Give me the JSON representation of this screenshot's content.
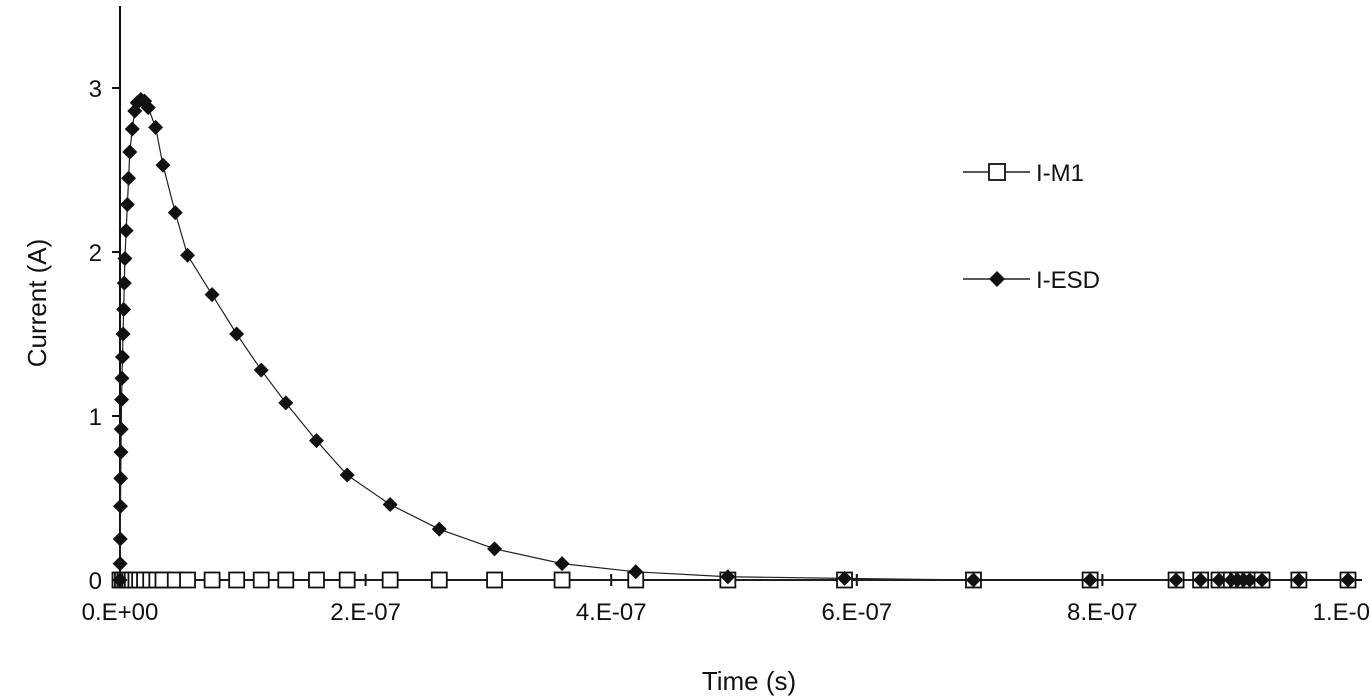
{
  "chart_data": {
    "type": "scatter",
    "title": "",
    "xlabel": "Time (s)",
    "ylabel": "Current (A)",
    "xlim": [
      0,
      1e-06
    ],
    "ylim": [
      0,
      3.5
    ],
    "x_ticks": [
      0,
      2e-07,
      4e-07,
      6e-07,
      8e-07,
      1e-06
    ],
    "x_tick_labels": [
      "0.E+00",
      "2.E-07",
      "4.E-07",
      "6.E-07",
      "8.E-07",
      "1.E-06"
    ],
    "y_ticks": [
      0,
      1,
      2,
      3
    ],
    "y_tick_labels": [
      "0",
      "1",
      "2",
      "3"
    ],
    "grid": false,
    "legend": "right",
    "series": [
      {
        "name": "I-M1",
        "marker": "square-open",
        "color": "#111111",
        "x": [
          0,
          2e-09,
          4e-09,
          6e-09,
          8e-09,
          1e-08,
          1.3e-08,
          1.6e-08,
          2e-08,
          2.5e-08,
          3e-08,
          3.5e-08,
          4.5e-08,
          5.5e-08,
          7.5e-08,
          9.5e-08,
          1.15e-07,
          1.35e-07,
          1.6e-07,
          1.85e-07,
          2.2e-07,
          2.6e-07,
          3.05e-07,
          3.6e-07,
          4.2e-07,
          4.95e-07,
          5.9e-07,
          6.95e-07,
          7.9e-07,
          8.6e-07,
          8.8e-07,
          8.95e-07,
          9.05e-07,
          9.1e-07,
          9.15e-07,
          9.2e-07,
          9.3e-07,
          9.6e-07,
          1e-06
        ],
        "y": [
          0,
          0,
          0,
          0,
          0,
          0,
          0,
          0,
          0,
          0,
          0,
          0,
          0,
          0,
          0,
          0,
          0,
          0,
          0,
          0,
          0,
          0,
          0,
          0,
          0,
          0,
          0,
          0,
          0,
          0,
          0,
          0,
          0,
          0,
          0,
          0,
          0,
          0,
          0
        ]
      },
      {
        "name": "I-ESD",
        "marker": "diamond-filled",
        "color": "#111111",
        "x": [
          0,
          1e-10,
          2e-10,
          4e-10,
          6e-10,
          8e-10,
          1e-09,
          1.3e-09,
          1.6e-09,
          2e-09,
          2.5e-09,
          3e-09,
          3.5e-09,
          4e-09,
          5e-09,
          6e-09,
          7e-09,
          8e-09,
          1e-08,
          1.2e-08,
          1.4e-08,
          1.7e-08,
          2e-08,
          2.3e-08,
          2.9e-08,
          3.5e-08,
          4.5e-08,
          5.5e-08,
          7.5e-08,
          9.5e-08,
          1.15e-07,
          1.35e-07,
          1.6e-07,
          1.85e-07,
          2.2e-07,
          2.6e-07,
          3.05e-07,
          3.6e-07,
          4.2e-07,
          4.95e-07,
          5.9e-07,
          6.95e-07,
          7.9e-07,
          8.6e-07,
          8.8e-07,
          8.95e-07,
          9.05e-07,
          9.1e-07,
          9.15e-07,
          9.2e-07,
          9.3e-07,
          9.6e-07,
          1e-06
        ],
        "y": [
          0,
          0.1,
          0.25,
          0.45,
          0.62,
          0.78,
          0.92,
          1.1,
          1.23,
          1.36,
          1.5,
          1.65,
          1.81,
          1.96,
          2.13,
          2.29,
          2.45,
          2.61,
          2.75,
          2.86,
          2.91,
          2.93,
          2.92,
          2.88,
          2.76,
          2.53,
          2.24,
          1.98,
          1.74,
          1.5,
          1.28,
          1.08,
          0.85,
          0.64,
          0.46,
          0.31,
          0.19,
          0.1,
          0.05,
          0.02,
          0.01,
          0,
          0,
          0,
          0,
          0,
          0,
          0,
          0,
          0,
          0,
          0,
          0
        ]
      }
    ]
  }
}
